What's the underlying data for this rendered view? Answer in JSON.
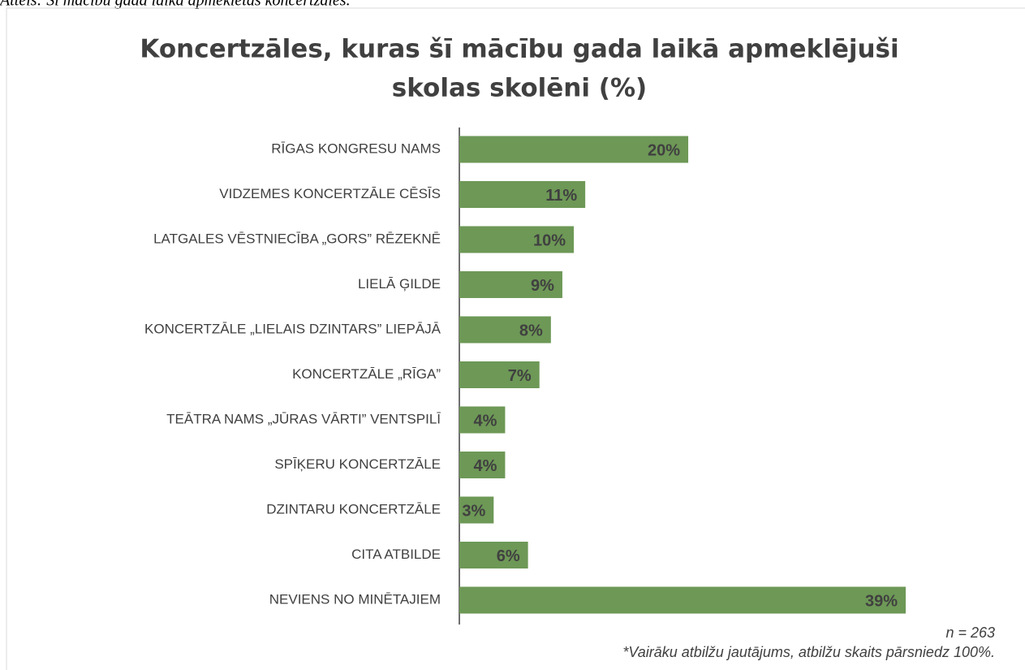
{
  "caption": "Attēls: Šī mācību gada laikā apmeklētās koncertzāles.",
  "chart_data": {
    "type": "bar",
    "orientation": "horizontal",
    "title": [
      "Koncertzāles, kuras šī mācību gada laikā apmeklējuši",
      "skolas skolēni (%)"
    ],
    "categories": [
      "RĪGAS KONGRESU NAMS",
      "VIDZEMES KONCERTZĀLE CĒSĪS",
      "LATGALES VĒSTNIECĪBA „GORS” RĒZEKNĒ",
      "LIELĀ ĢILDE",
      "KONCERTZĀLE „LIELAIS DZINTARS” LIEPĀJĀ",
      "KONCERTZĀLE „RĪGA”",
      "TEĀTRA NAMS „JŪRAS VĀRTI” VENTSPILĪ",
      "SPĪĶERU KONCERTZĀLE",
      "DZINTARU KONCERTZĀLE",
      "CITA ATBILDE",
      "NEVIENS NO MINĒTAJIEM"
    ],
    "values": [
      20,
      11,
      10,
      9,
      8,
      7,
      4,
      4,
      3,
      6,
      39
    ],
    "value_labels": [
      "20%",
      "11%",
      "10%",
      "9%",
      "8%",
      "7%",
      "4%",
      "4%",
      "3%",
      "6%",
      "39%"
    ],
    "color": "#6d9856",
    "annotations": [
      "n = 263",
      "*Vairāku atbilžu jautājums, atbilžu skaits pārsniedz 100%."
    ]
  }
}
